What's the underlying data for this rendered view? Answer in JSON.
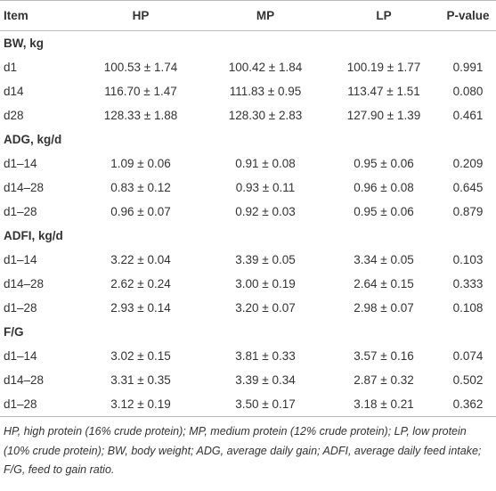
{
  "table": {
    "header": [
      "Item",
      "HP",
      "MP",
      "LP",
      "P-value"
    ],
    "sections": [
      {
        "title": "BW, kg",
        "rows": [
          [
            "d1",
            "100.53 ± 1.74",
            "100.42 ± 1.84",
            "100.19 ± 1.77",
            "0.991"
          ],
          [
            "d14",
            "116.70 ± 1.47",
            "111.83 ± 0.95",
            "113.47 ± 1.51",
            "0.080"
          ],
          [
            "d28",
            "128.33 ± 1.88",
            "128.30 ± 2.83",
            "127.90 ± 1.39",
            "0.461"
          ]
        ]
      },
      {
        "title": "ADG, kg/d",
        "rows": [
          [
            "d1–14",
            "1.09 ± 0.06",
            "0.91 ± 0.08",
            "0.95 ± 0.06",
            "0.209"
          ],
          [
            "d14–28",
            "0.83 ± 0.12",
            "0.93 ± 0.11",
            "0.96 ± 0.08",
            "0.645"
          ],
          [
            "d1–28",
            "0.96 ± 0.07",
            "0.92 ± 0.03",
            "0.95 ± 0.06",
            "0.879"
          ]
        ]
      },
      {
        "title": "ADFI, kg/d",
        "rows": [
          [
            "d1–14",
            "3.22 ± 0.04",
            "3.39 ± 0.05",
            "3.34 ± 0.05",
            "0.103"
          ],
          [
            "d14–28",
            "2.62 ± 0.24",
            "3.00 ± 0.19",
            "2.64 ± 0.15",
            "0.333"
          ],
          [
            "d1–28",
            "2.93 ± 0.14",
            "3.20 ± 0.07",
            "2.98 ± 0.07",
            "0.108"
          ]
        ]
      },
      {
        "title": "F/G",
        "rows": [
          [
            "d1–14",
            "3.02 ± 0.15",
            "3.81 ± 0.33",
            "3.57 ± 0.16",
            "0.074"
          ],
          [
            "d14–28",
            "3.31 ± 0.35",
            "3.39 ± 0.34",
            "2.87 ± 0.32",
            "0.502"
          ],
          [
            "d1–28",
            "3.12 ± 0.19",
            "3.50 ± 0.17",
            "3.18 ± 0.21",
            "0.362"
          ]
        ]
      }
    ]
  },
  "footnote": "HP, high protein (16% crude protein); MP, medium protein (12% crude protein); LP, low protein (10% crude protein); BW, body weight; ADG, average daily gain; ADFI, average daily feed intake; F/G, feed to gain ratio."
}
